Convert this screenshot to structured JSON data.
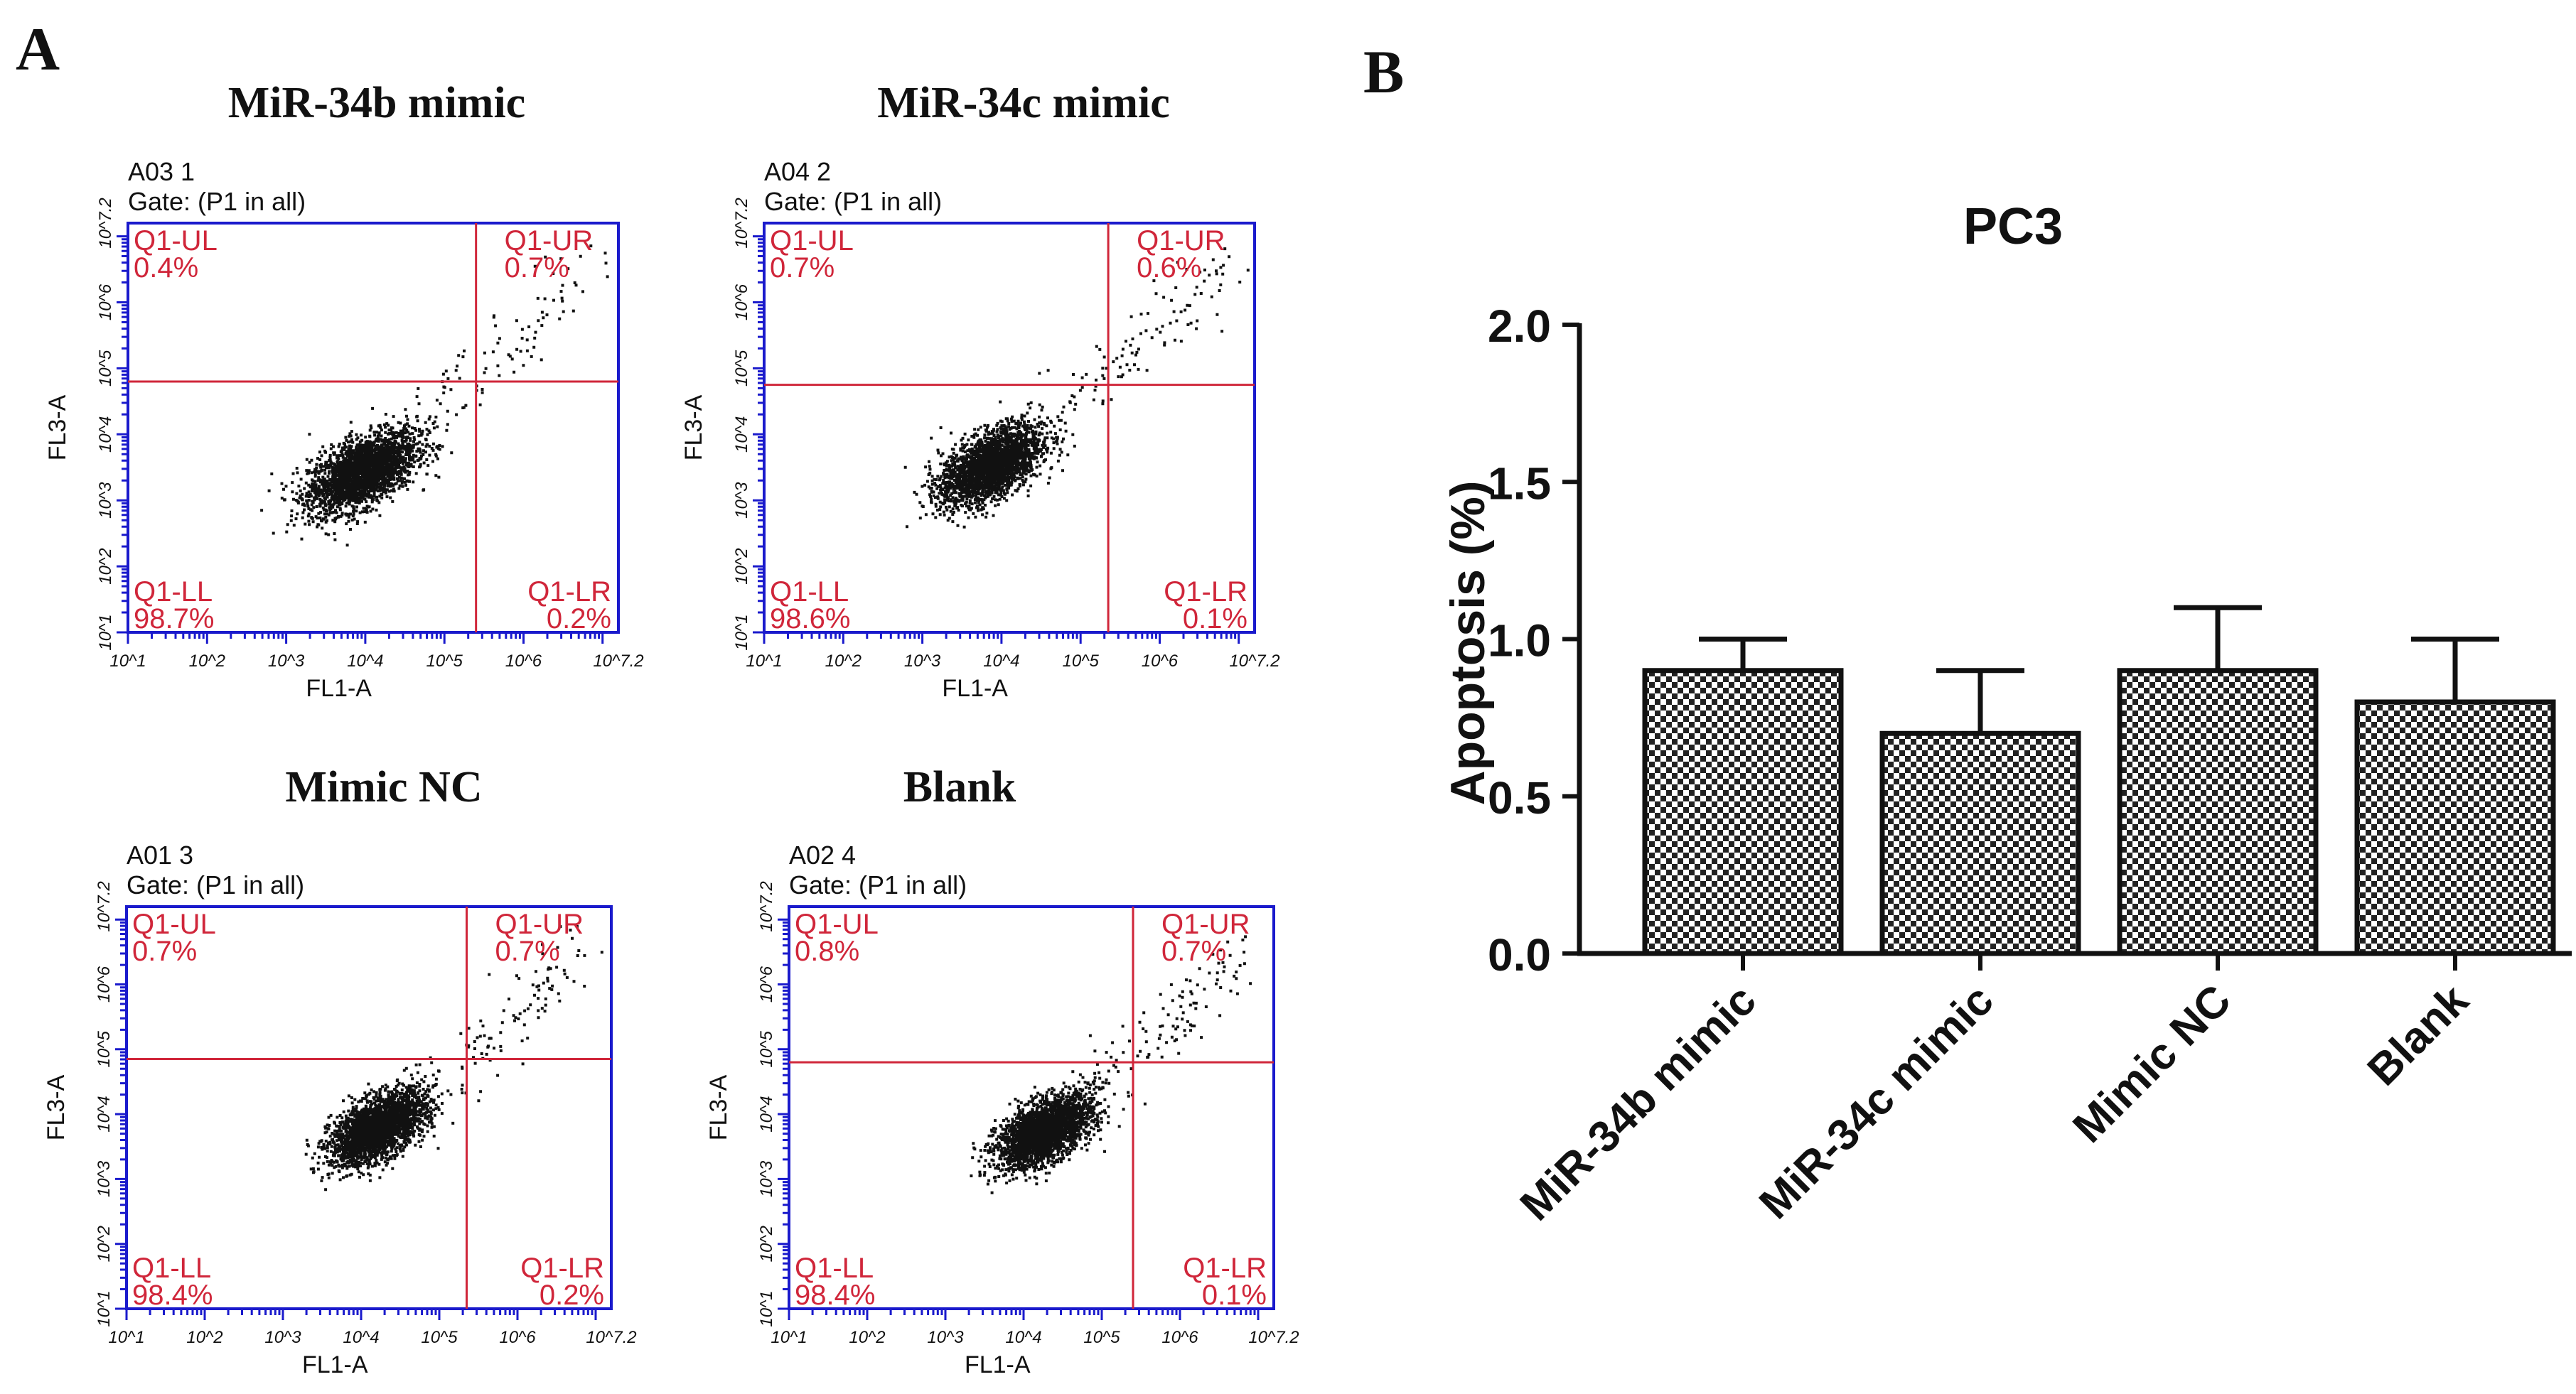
{
  "panel_labels": {
    "a": "A",
    "b": "B"
  },
  "colors": {
    "axis_frame": "#1a1acc",
    "gate_line": "#d0263a",
    "quadrant_text": "#d0263a",
    "dots": "#111111",
    "bar_stroke": "#111111",
    "text": "#111111"
  },
  "flow_common": {
    "x_axis_label": "FL1-A",
    "y_axis_label": "FL3-A",
    "x_tick_labels": [
      "10^1",
      "10^2",
      "10^3",
      "10^4",
      "10^5",
      "10^6",
      "10^7.2"
    ],
    "y_tick_labels": [
      "10^1",
      "10^2",
      "10^3",
      "10^4",
      "10^5",
      "10^6",
      "10^7.2"
    ],
    "tick_exponents": [
      1,
      2,
      3,
      4,
      5,
      6,
      7.2
    ],
    "log_range": [
      1,
      7.2
    ]
  },
  "flow_plots": [
    {
      "title": "MiR-34b mimic",
      "sample_id": "A03 1",
      "gate": "Gate: (P1 in all)",
      "gate_log": {
        "x": 5.4,
        "y": 4.8
      },
      "cluster": {
        "cx": 3.95,
        "cy": 3.45,
        "sx": 0.34,
        "sy": 0.3,
        "n": 2600,
        "scatter_n": 110
      },
      "quadrants": {
        "ul": {
          "name": "Q1-UL",
          "pct": "0.4%"
        },
        "ur": {
          "name": "Q1-UR",
          "pct": "0.7%"
        },
        "ll": {
          "name": "Q1-LL",
          "pct": "98.7%"
        },
        "lr": {
          "name": "Q1-LR",
          "pct": "0.2%"
        }
      }
    },
    {
      "title": "MiR-34c mimic",
      "sample_id": "A04 2",
      "gate": "Gate: (P1 in all)",
      "gate_log": {
        "x": 5.35,
        "y": 4.75
      },
      "cluster": {
        "cx": 3.85,
        "cy": 3.55,
        "sx": 0.32,
        "sy": 0.3,
        "n": 2400,
        "scatter_n": 120
      },
      "quadrants": {
        "ul": {
          "name": "Q1-UL",
          "pct": "0.7%"
        },
        "ur": {
          "name": "Q1-UR",
          "pct": "0.6%"
        },
        "ll": {
          "name": "Q1-LL",
          "pct": "98.6%"
        },
        "lr": {
          "name": "Q1-LR",
          "pct": "0.1%"
        }
      }
    },
    {
      "title": "Mimic NC",
      "sample_id": "A01 3",
      "gate": "Gate: (P1 in all)",
      "gate_log": {
        "x": 5.35,
        "y": 4.85
      },
      "cluster": {
        "cx": 4.2,
        "cy": 3.8,
        "sx": 0.3,
        "sy": 0.27,
        "n": 2600,
        "scatter_n": 130
      },
      "quadrants": {
        "ul": {
          "name": "Q1-UL",
          "pct": "0.7%"
        },
        "ur": {
          "name": "Q1-UR",
          "pct": "0.7%"
        },
        "ll": {
          "name": "Q1-LL",
          "pct": "98.4%"
        },
        "lr": {
          "name": "Q1-LR",
          "pct": "0.2%"
        }
      }
    },
    {
      "title": "Blank",
      "sample_id": "A02 4",
      "gate": "Gate: (P1 in all)",
      "gate_log": {
        "x": 5.4,
        "y": 4.8
      },
      "cluster": {
        "cx": 4.25,
        "cy": 3.75,
        "sx": 0.3,
        "sy": 0.27,
        "n": 2600,
        "scatter_n": 130
      },
      "quadrants": {
        "ul": {
          "name": "Q1-UL",
          "pct": "0.8%"
        },
        "ur": {
          "name": "Q1-UR",
          "pct": "0.7%"
        },
        "ll": {
          "name": "Q1-LL",
          "pct": "98.4%"
        },
        "lr": {
          "name": "Q1-LR",
          "pct": "0.1%"
        }
      }
    }
  ],
  "chart_data": {
    "type": "bar",
    "title": "PC3",
    "xlabel": "",
    "ylabel": "Apoptosis (%)",
    "categories": [
      "MiR-34b mimic",
      "MiR-34c mimic",
      "Mimic NC",
      "Blank"
    ],
    "values": [
      0.9,
      0.7,
      0.9,
      0.8
    ],
    "error": [
      0.1,
      0.2,
      0.2,
      0.2
    ],
    "ylim": [
      0,
      2.0
    ],
    "yticks": [
      0.0,
      0.5,
      1.0,
      1.5,
      2.0
    ],
    "ytick_labels": [
      "0.0",
      "0.5",
      "1.0",
      "1.5",
      "2.0"
    ],
    "bar_fill": "checkered hatch",
    "grid": false,
    "legend": "none"
  }
}
